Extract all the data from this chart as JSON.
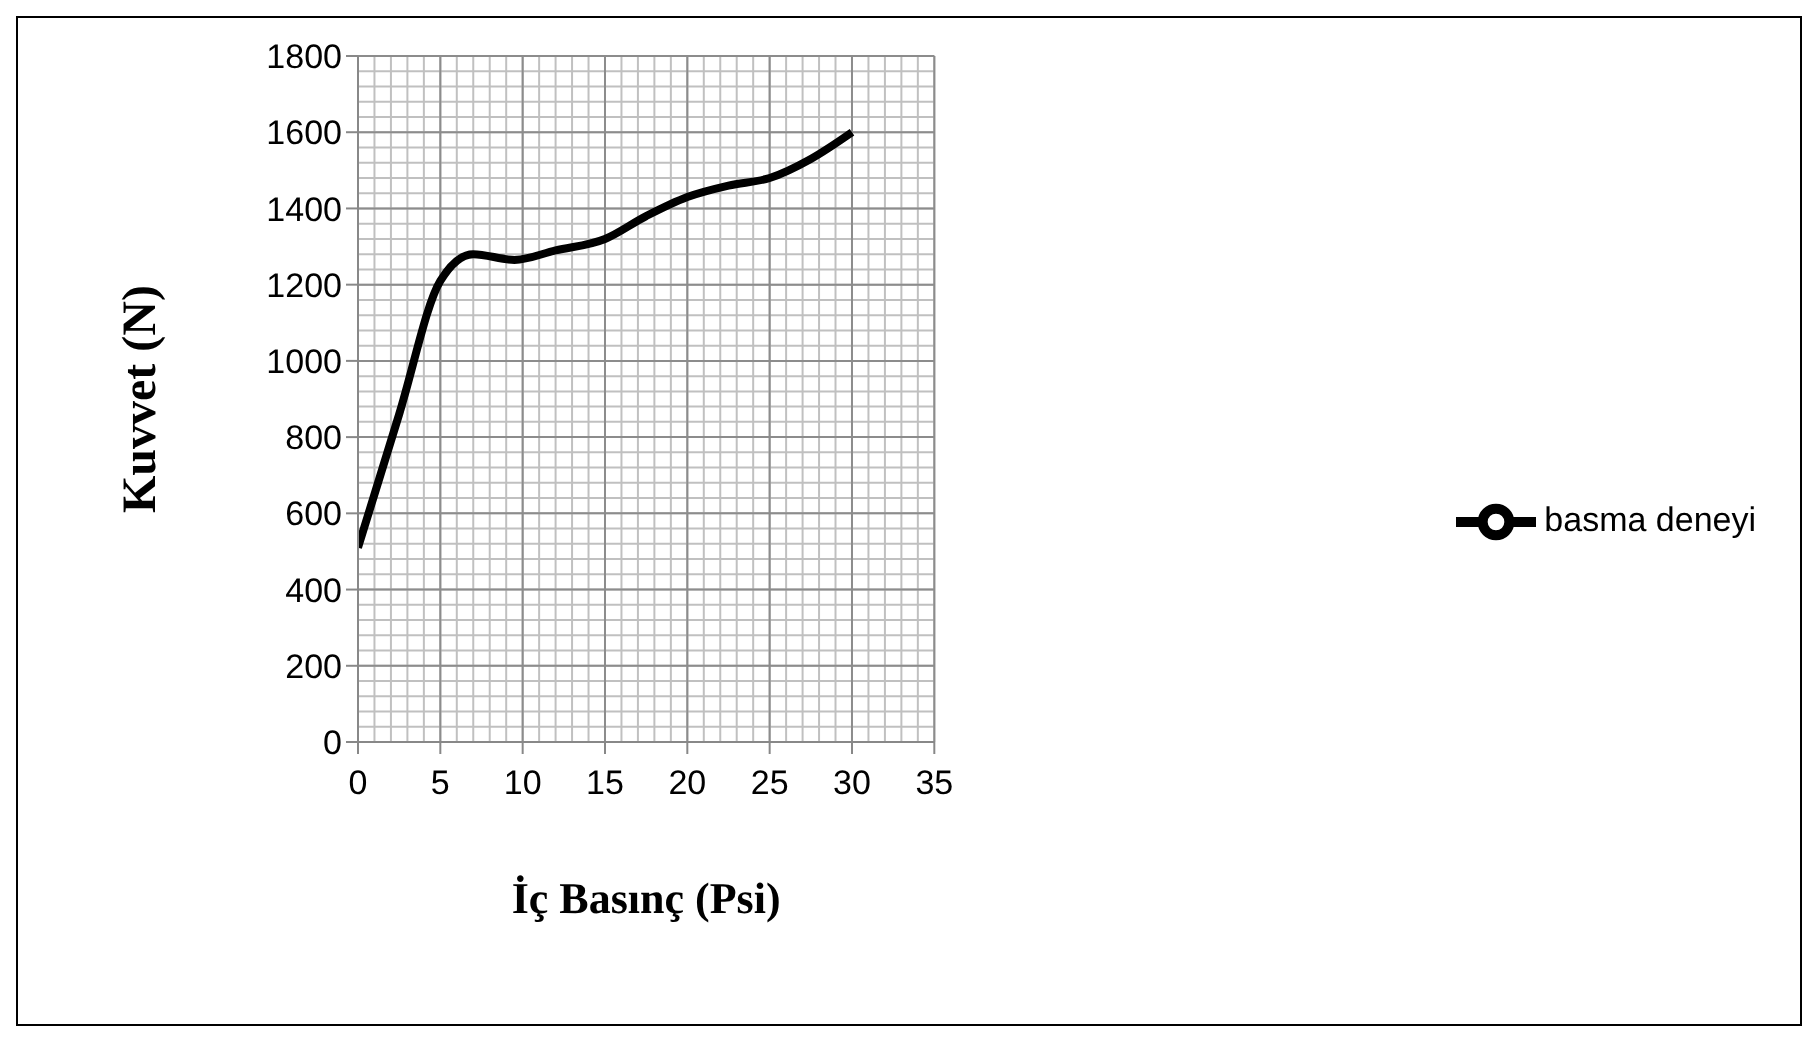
{
  "chart_data": {
    "type": "line",
    "xlabel": "İç Basınç (Psi)",
    "ylabel": "Kuvvet (N)",
    "xlim": [
      0,
      35
    ],
    "xticks": [
      0,
      5,
      10,
      15,
      20,
      25,
      30,
      35
    ],
    "ylim": [
      0,
      1800
    ],
    "yticks": [
      0,
      200,
      400,
      600,
      800,
      1000,
      1200,
      1400,
      1600,
      1800
    ],
    "grid": true,
    "legend": "right",
    "marker": "none",
    "line_style": "solid",
    "series": [
      {
        "name": "basma deneyi",
        "color": "#000000",
        "x": [
          0,
          2.5,
          5,
          7,
          9.5,
          12,
          15,
          17.5,
          20,
          22.5,
          25,
          27.5,
          30
        ],
        "values": [
          510,
          860,
          1210,
          1280,
          1265,
          1290,
          1320,
          1380,
          1430,
          1460,
          1480,
          1530,
          1600
        ]
      }
    ]
  }
}
